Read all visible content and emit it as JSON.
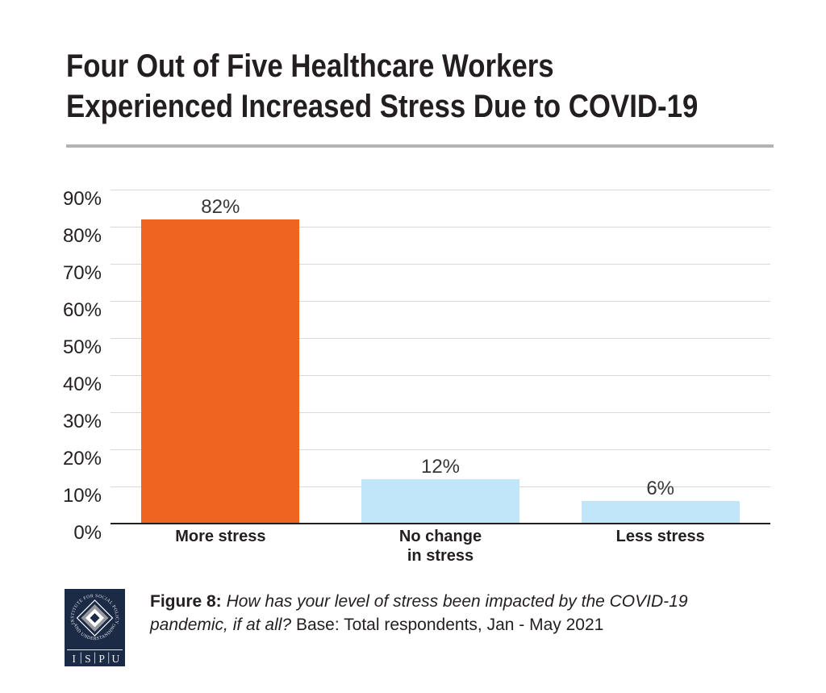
{
  "page": {
    "title_line1": "Four Out of Five Healthcare Workers",
    "title_line2": "Experienced Increased Stress Due to COVID-19"
  },
  "chart_data": {
    "type": "bar",
    "title": "Four Out of Five Healthcare Workers Experienced Increased Stress Due to COVID-19",
    "categories": [
      "More stress",
      "No change\nin stress",
      "Less stress"
    ],
    "values": [
      82,
      12,
      6
    ],
    "value_labels": [
      "82%",
      "12%",
      "6%"
    ],
    "bar_colors": [
      "#F06422",
      "#C1E6F9",
      "#C1E6F9"
    ],
    "y_ticks": [
      "0%",
      "10%",
      "20%",
      "30%",
      "40%",
      "50%",
      "60%",
      "70%",
      "80%",
      "90%"
    ],
    "ylim": [
      0,
      90
    ],
    "grid": true,
    "legend": false,
    "xlabel": "",
    "ylabel": ""
  },
  "caption": {
    "figure_label": "Figure 8:",
    "question_part1": "How has your level of stress been impacted by the COVID-19",
    "question_part2": "pandemic, if at all?",
    "base_note": "Base: Total respondents, Jan - May 2021"
  },
  "logo": {
    "arc_top": "INSTITUTE FOR SOCIAL POLICY",
    "arc_bottom": "AND UNDERSTANDING",
    "letters": [
      "I",
      "S",
      "P",
      "U"
    ]
  },
  "colors": {
    "accent_orange": "#F06422",
    "light_blue": "#C1E6F9",
    "text_dark": "#231F20",
    "value_label_gray": "#373737",
    "gridline_gray": "#D9D9D9",
    "divider_gray": "#B3B3B3",
    "logo_navy": "#1B2A45",
    "logo_silver": "#96989D"
  }
}
